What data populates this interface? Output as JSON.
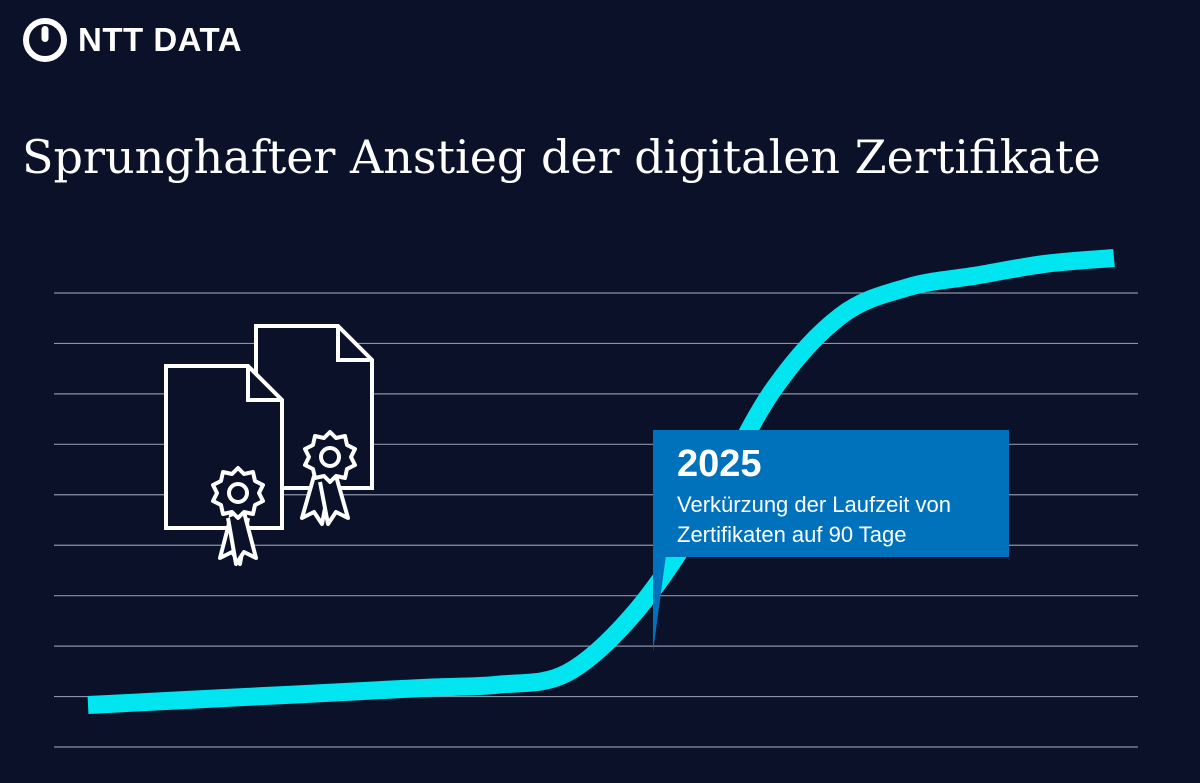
{
  "brand": {
    "logo_text": "NTT DATA",
    "logo_icon": "ntt-data-logo-icon"
  },
  "title": "Sprunghafter Anstieg der digitalen Zertifikate",
  "colors": {
    "background": "#0a1128",
    "curve": "#00e5f0",
    "callout": "#0072bc",
    "gridline": "#8a93a6",
    "text": "#ffffff"
  },
  "chart_data": {
    "type": "line",
    "grid": true,
    "gridlines": 10,
    "axes_visible": false,
    "series": [
      {
        "values": [
          0,
          0.06,
          0.12,
          0.18,
          0.24,
          0.3,
          0.35,
          0.55,
          1.6,
          3.3,
          5.4,
          6.7,
          7.2,
          7.4,
          7.6,
          7.7
        ]
      }
    ],
    "annotation": {
      "year": "2025",
      "text": "Verkürzung der Laufzeit von Zertifikaten auf 90 Tage"
    }
  },
  "icons": {
    "document_back": "certificate-document-icon",
    "document_front": "certificate-document-icon",
    "ribbon": "award-ribbon-icon"
  }
}
